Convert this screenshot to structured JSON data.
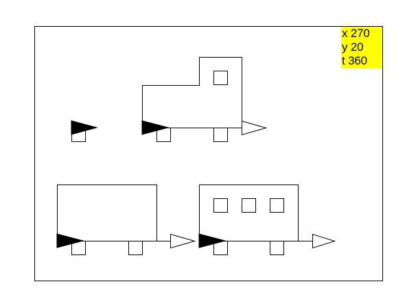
{
  "turtle_readout": {
    "x_label": "x",
    "x_value": "270",
    "y_label": "y",
    "y_value": "20",
    "t_label": "t",
    "t_value": "360"
  },
  "colors": {
    "canvas_background": "#ffffff",
    "stroke": "#000000",
    "turtle_fill": "#000000",
    "arrow_fill": "#ffffff",
    "readout_background": "#ffff00"
  },
  "icons": {
    "turtle": "black-triangle-turtle-icon",
    "direction": "white-arrow-icon"
  }
}
